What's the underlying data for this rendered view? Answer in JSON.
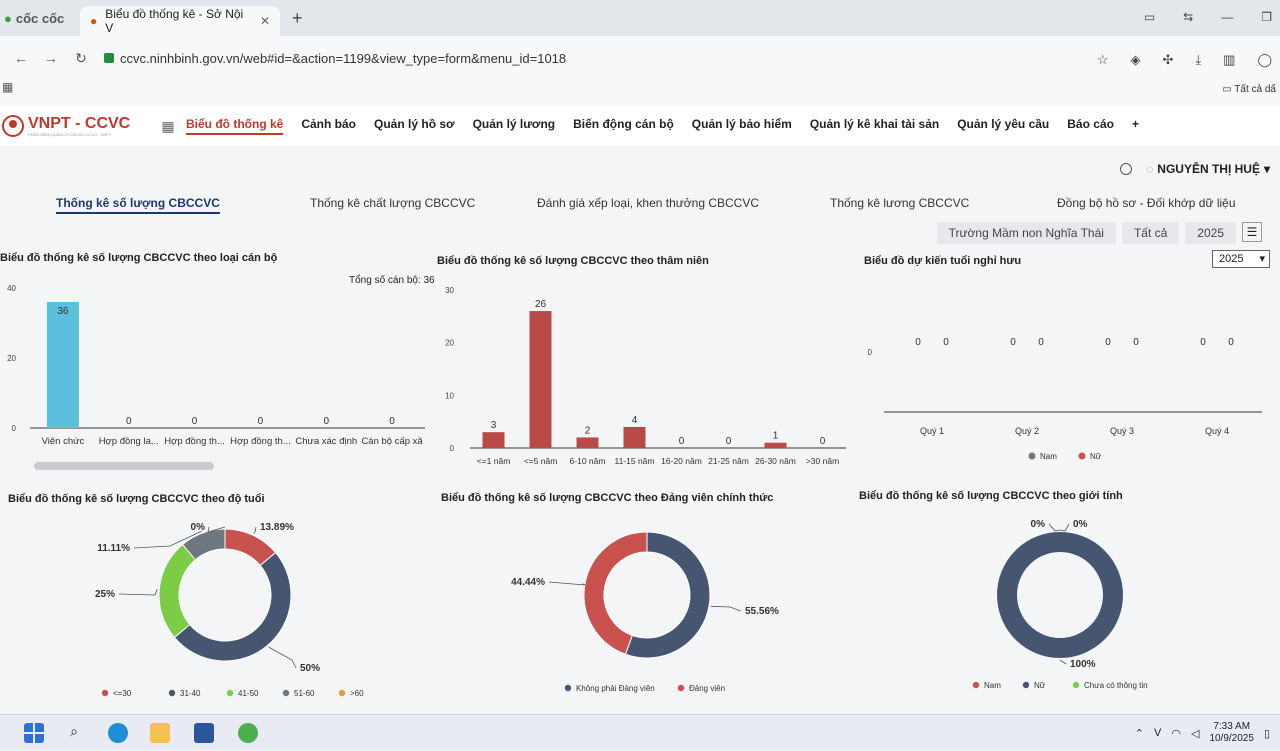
{
  "browser": {
    "brand": "cốc cốc",
    "tab_title": "Biểu đồ thống kê - Sở Nội V",
    "url": "ccvc.ninhbinh.gov.vn/web#id=&action=1199&view_type=form&menu_id=1018",
    "bookmark_folder": "Tất cả dấ"
  },
  "app": {
    "logo": "VNPT - CCVC",
    "logo_sub": "PHẦN MỀM QUẢN LÝ CÁN BỘ CCVC - VNPT",
    "menu": [
      "Biểu đồ thống kê",
      "Cảnh báo",
      "Quản lý hồ sơ",
      "Quản lý lương",
      "Biến động cán bộ",
      "Quản lý bảo hiểm",
      "Quản lý kê khai tài sản",
      "Quản lý yêu cầu",
      "Báo cáo",
      "+"
    ],
    "user": "NGUYỄN THỊ HUỆ"
  },
  "subtabs": [
    "Thống kê số lượng CBCCVC",
    "Thống kê chất lượng CBCCVC",
    "Đánh giá xếp loại, khen thưởng CBCCVC",
    "Thống kê lương CBCCVC",
    "Đồng bộ hồ sơ - Đối khớp dữ liệu"
  ],
  "filters": {
    "school": "Trường Mầm non Nghĩa Thái",
    "scope": "Tất cả",
    "year": "2025"
  },
  "panels": {
    "p1_title": "Biểu đồ thống kê số lượng CBCCVC theo loại cán bộ",
    "p1_total": "Tổng số cán bộ: 36",
    "p2_title": "Biểu đồ thống kê số lượng CBCCVC theo thâm niên",
    "p3_title": "Biểu đồ dự kiến tuổi nghỉ hưu",
    "p3_year": "2025",
    "p4_title": "Biểu đồ thống kê số lượng CBCCVC theo độ tuổi",
    "p5_title": "Biểu đồ thống kê số lượng CBCCVC theo Đảng viên chính thức",
    "p6_title": "Biểu đồ thống kê số lượng CBCCVC theo giới tính"
  },
  "taskbar": {
    "time": "7:33 AM",
    "date": "10/9/2025"
  },
  "chart_data": [
    {
      "type": "bar",
      "categories": [
        "Viên chức",
        "Hợp đồng la...",
        "Hợp đồng th...",
        "Hợp đồng th...",
        "Chưa xác định",
        "Cán bộ cấp xã"
      ],
      "values": [
        36,
        0,
        0,
        0,
        0,
        0
      ],
      "ylim": [
        0,
        40
      ],
      "yticks": [
        0,
        20,
        40
      ],
      "color": "#5bc0de"
    },
    {
      "type": "bar",
      "categories": [
        "<=1 năm",
        "<=5 năm",
        "6-10 năm",
        "11-15 năm",
        "16-20 năm",
        "21-25 năm",
        "26-30 năm",
        ">30 năm"
      ],
      "values": [
        3,
        26,
        2,
        4,
        0,
        0,
        1,
        0
      ],
      "ylim": [
        0,
        30
      ],
      "yticks": [
        0,
        10,
        20,
        30
      ],
      "color": "#b94a48"
    },
    {
      "type": "bar",
      "categories": [
        "Quý 1",
        "Quý 2",
        "Quý 3",
        "Quý 4"
      ],
      "series": [
        {
          "name": "Nam",
          "values": [
            0,
            0,
            0,
            0
          ]
        },
        {
          "name": "Nữ",
          "values": [
            0,
            0,
            0,
            0
          ]
        }
      ],
      "yticks": [
        0
      ],
      "colors": [
        "#777777",
        "#c9514e"
      ]
    },
    {
      "type": "pie",
      "labels": [
        "<=30",
        "31-40",
        "41-50",
        "51-60",
        ">60"
      ],
      "values": [
        13.89,
        50,
        25,
        11.11,
        0
      ],
      "display": [
        "13.89%",
        "50%",
        "25%",
        "11.11%",
        "0%"
      ],
      "colors": [
        "#c9514e",
        "#475670",
        "#7ccd45",
        "#6f7880",
        "#e0a040"
      ]
    },
    {
      "type": "pie",
      "labels": [
        "Không phải Đảng viên",
        "Đảng viên"
      ],
      "values": [
        55.56,
        44.44
      ],
      "display": [
        "55.56%",
        "44.44%"
      ],
      "colors": [
        "#475670",
        "#c9514e"
      ]
    },
    {
      "type": "pie",
      "labels": [
        "Nam",
        "Nữ",
        "Chưa có thông tin"
      ],
      "values": [
        0,
        100,
        0
      ],
      "display": [
        "0%",
        "100%",
        "0%"
      ],
      "colors": [
        "#c9514e",
        "#475670",
        "#7ccd45"
      ]
    }
  ]
}
